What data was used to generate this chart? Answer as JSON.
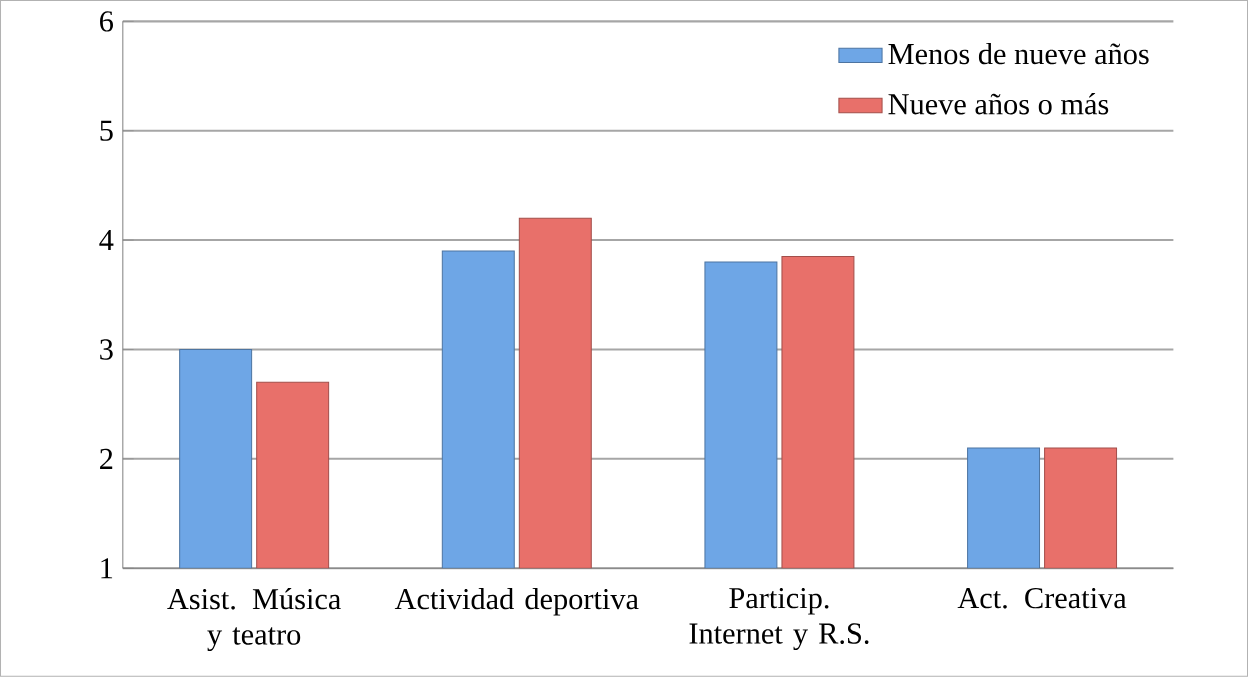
{
  "chart_data": {
    "type": "bar",
    "categories": [
      "Asist. Música y teatro",
      "Actividad deportiva",
      "Particip. Internet y R.S.",
      "Act. Creativa"
    ],
    "series": [
      {
        "name": "Menos de nueve años",
        "color": "#6ea6e6",
        "values": [
          3.0,
          3.9,
          3.8,
          2.1
        ]
      },
      {
        "name": "Nueve años o más",
        "color": "#e8706a",
        "values": [
          2.7,
          4.2,
          3.85,
          2.1
        ]
      }
    ],
    "ylim": [
      1,
      6
    ],
    "yticks": [
      1,
      2,
      3,
      4,
      5,
      6
    ],
    "grid": "y",
    "legend": "top right"
  }
}
